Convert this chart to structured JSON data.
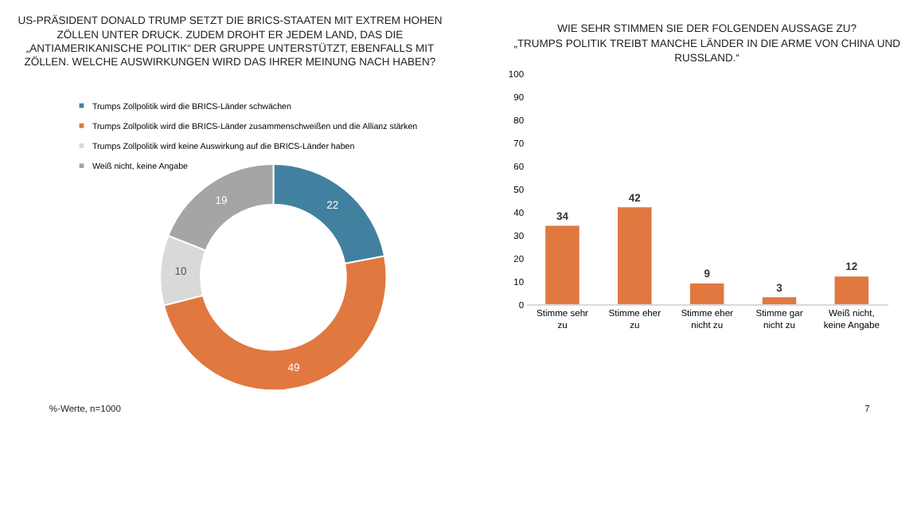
{
  "chart_data": [
    {
      "type": "donut",
      "title": "US-PRÄSIDENT DONALD TRUMP SETZT DIE BRICS-STAATEN MIT EXTREM HOHEN ZÖLLEN UNTER DRUCK. ZUDEM DROHT ER JEDEM LAND, DAS DIE „ANTIAMERIKANISCHE POLITIK“ DER GRUPPE UNTERSTÜTZT, EBENFALLS MIT ZÖLLEN. WELCHE AUSWIRKUNGEN WIRD DAS IHRER MEINUNG NACH HABEN?",
      "categories": [
        "Trumps Zollpolitik wird die BRICS-Länder schwächen",
        "Trumps Zollpolitik wird die BRICS-Länder zusammenschweißen und die Allianz stärken",
        "Trumps Zollpolitik wird keine Auswirkung auf die BRICS-Länder haben",
        "Weiß nicht, keine Angabe"
      ],
      "values": [
        22,
        49,
        10,
        19
      ],
      "colors": [
        "#41809f",
        "#e07840",
        "#d9d9d9",
        "#a5a5a5"
      ],
      "data_labels": true,
      "legend": "top left",
      "annotations": [
        "%-Werte, n=1000",
        "7"
      ]
    },
    {
      "type": "bar",
      "title": "WIE SEHR STIMMEN SIE DER FOLGENDEN AUSSAGE ZU?",
      "subtitle": "„TRUMPS POLITIK TREIBT MANCHE LÄNDER IN DIE ARME VON CHINA UND RUSSLAND.“",
      "categories": [
        "Stimme sehr zu",
        "Stimme eher zu",
        "Stimme eher nicht zu",
        "Stimme gar nicht zu",
        "Weiß nicht, keine Angabe"
      ],
      "values": [
        34,
        42,
        9,
        3,
        12
      ],
      "color": "#e07840",
      "ylim": [
        0,
        100
      ],
      "yticks": [
        0,
        10,
        20,
        30,
        40,
        50,
        60,
        70,
        80,
        90,
        100
      ],
      "data_labels": true,
      "grid": false
    }
  ]
}
